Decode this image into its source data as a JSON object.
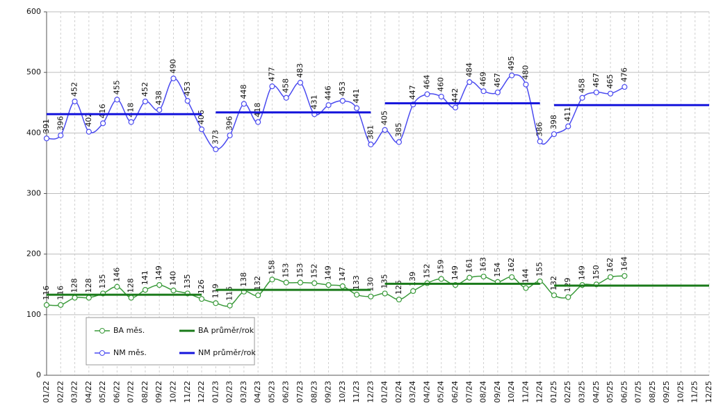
{
  "chart_data": {
    "type": "line",
    "categories": [
      "01/22",
      "02/22",
      "03/22",
      "04/22",
      "05/22",
      "06/22",
      "07/22",
      "08/22",
      "09/22",
      "10/22",
      "11/22",
      "12/22",
      "01/23",
      "02/23",
      "03/23",
      "04/23",
      "05/23",
      "06/23",
      "07/23",
      "08/23",
      "09/23",
      "10/23",
      "11/23",
      "12/23",
      "01/24",
      "02/24",
      "03/24",
      "04/24",
      "05/24",
      "06/24",
      "07/24",
      "08/24",
      "09/24",
      "10/24",
      "11/24",
      "12/24",
      "01/25",
      "02/25",
      "03/25",
      "04/25",
      "05/25",
      "06/25",
      "07/25",
      "08/25",
      "09/25",
      "10/25",
      "11/25",
      "12/25"
    ],
    "series": [
      {
        "name": "BA měs.",
        "color": "#3a9a3a",
        "markers": true,
        "data_labels": true,
        "values": [
          116,
          116,
          128,
          128,
          135,
          146,
          128,
          141,
          149,
          140,
          135,
          126,
          119,
          115,
          138,
          132,
          158,
          153,
          153,
          152,
          149,
          147,
          133,
          130,
          135,
          125,
          139,
          152,
          159,
          149,
          161,
          163,
          154,
          162,
          144,
          155,
          132,
          129,
          149,
          150,
          162,
          164,
          null,
          null,
          null,
          null,
          null,
          null
        ]
      },
      {
        "name": "BA průměr/rok",
        "color": "#1a7a1a",
        "markers": false,
        "data_labels": false,
        "values": [
          133,
          133,
          133,
          133,
          133,
          133,
          133,
          133,
          133,
          133,
          133,
          133,
          141,
          141,
          141,
          141,
          141,
          141,
          141,
          141,
          141,
          141,
          141,
          141,
          151,
          151,
          151,
          151,
          151,
          151,
          151,
          151,
          151,
          151,
          151,
          151,
          148,
          148,
          148,
          148,
          148,
          148,
          148,
          148,
          148,
          148,
          148,
          148
        ]
      },
      {
        "name": "NM měs.",
        "color": "#4a4af0",
        "markers": true,
        "data_labels": true,
        "values": [
          391,
          396,
          452,
          402,
          416,
          455,
          418,
          452,
          438,
          490,
          453,
          406,
          373,
          396,
          448,
          418,
          477,
          458,
          483,
          431,
          446,
          453,
          441,
          381,
          405,
          385,
          447,
          464,
          460,
          442,
          484,
          469,
          467,
          495,
          480,
          386,
          398,
          411,
          458,
          467,
          465,
          476,
          null,
          null,
          null,
          null,
          null,
          null
        ]
      },
      {
        "name": "NM průměr/rok",
        "color": "#1414dc",
        "markers": false,
        "data_labels": false,
        "values": [
          431,
          431,
          431,
          431,
          431,
          431,
          431,
          431,
          431,
          431,
          431,
          431,
          434,
          434,
          434,
          434,
          434,
          434,
          434,
          434,
          434,
          434,
          434,
          434,
          449,
          449,
          449,
          449,
          449,
          449,
          449,
          449,
          449,
          449,
          449,
          449,
          446,
          446,
          446,
          446,
          446,
          446,
          446,
          446,
          446,
          446,
          446,
          446
        ]
      }
    ],
    "ylim": [
      0,
      600
    ],
    "yticks": [
      0,
      100,
      200,
      300,
      400,
      500,
      600
    ],
    "grid": true
  }
}
